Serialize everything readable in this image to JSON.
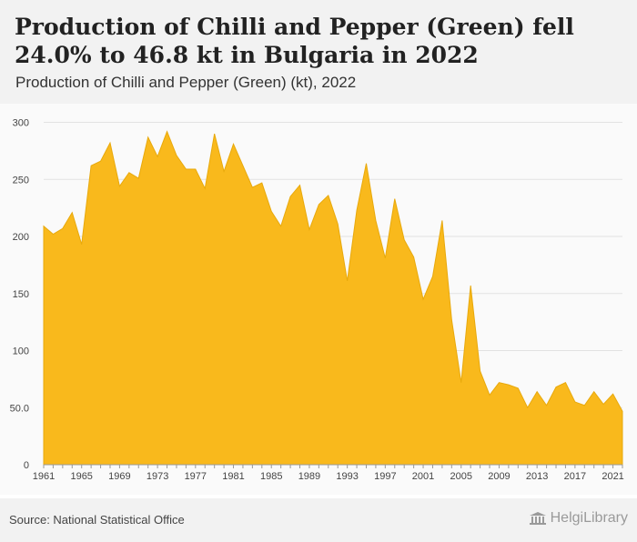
{
  "header": {
    "title": "Production of Chilli and Pepper (Green) fell 24.0% to 46.8 kt in Bulgaria in 2022",
    "subtitle": "Production of Chilli and Pepper (Green) (kt), 2022"
  },
  "footer": {
    "source": "Source: National Statistical Office",
    "brand": "HelgiLibrary",
    "brand_icon": "library-building-icon"
  },
  "colors": {
    "area_fill": "#f9b91c",
    "area_stroke": "#e8a90c",
    "header_bg": "#f2f2f2",
    "plot_bg": "#fafafa"
  },
  "chart_data": {
    "type": "area",
    "x": [
      1961,
      1962,
      1963,
      1964,
      1965,
      1966,
      1967,
      1968,
      1969,
      1970,
      1971,
      1972,
      1973,
      1974,
      1975,
      1976,
      1977,
      1978,
      1979,
      1980,
      1981,
      1982,
      1983,
      1984,
      1985,
      1986,
      1987,
      1988,
      1989,
      1990,
      1991,
      1992,
      1993,
      1994,
      1995,
      1996,
      1997,
      1998,
      1999,
      2000,
      2001,
      2002,
      2003,
      2004,
      2005,
      2006,
      2007,
      2008,
      2009,
      2010,
      2011,
      2012,
      2013,
      2014,
      2015,
      2016,
      2017,
      2018,
      2019,
      2020,
      2021,
      2022
    ],
    "values": [
      209,
      202,
      207,
      221,
      193,
      262,
      266,
      282,
      244,
      256,
      251,
      287,
      270,
      292,
      271,
      259,
      259,
      242,
      290,
      257,
      281,
      262,
      243,
      247,
      222,
      209,
      235,
      245,
      206,
      228,
      236,
      211,
      161,
      223,
      264,
      214,
      181,
      233,
      197,
      182,
      145,
      165,
      214,
      127,
      72,
      157,
      82,
      61,
      72,
      70,
      67,
      50,
      64,
      52,
      68,
      72,
      55,
      52,
      64,
      53,
      62,
      46.8
    ],
    "categories_shown": [
      "1961",
      "1965",
      "1969",
      "1973",
      "1977",
      "1981",
      "1985",
      "1989",
      "1993",
      "1997",
      "2001",
      "2005",
      "2009",
      "2013",
      "2017",
      "2021"
    ],
    "y_ticks": [
      "0",
      "50.0",
      "100",
      "150",
      "200",
      "250",
      "300"
    ],
    "y_tick_values": [
      0,
      50,
      100,
      150,
      200,
      250,
      300
    ],
    "ylim": [
      0,
      310
    ],
    "xlabel": "",
    "ylabel": "",
    "grid": true,
    "legend": "none"
  }
}
